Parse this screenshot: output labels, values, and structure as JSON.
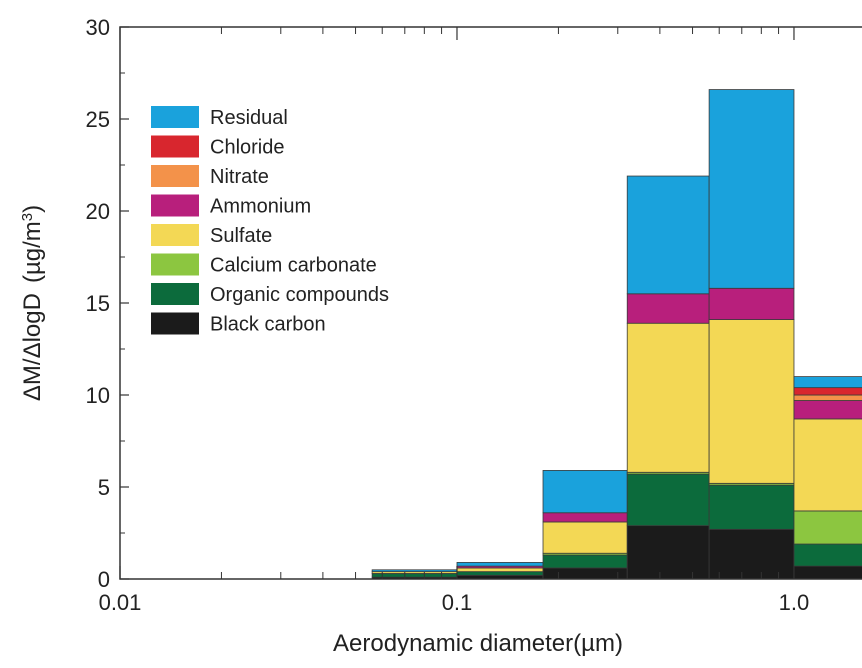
{
  "chart_data": {
    "type": "bar",
    "stacked": true,
    "x_scale": "log",
    "xlabel_main": "Aerodynamic diameter",
    "xlabel_unit": "(µm)",
    "ylabel_main": "ΔM/ΔlogD",
    "ylabel_unit_prefix": "(µg/m",
    "ylabel_unit_sup": "3",
    "ylabel_unit_suffix": ")",
    "xlim": [
      0.01,
      1.8
    ],
    "ylim": [
      0,
      30
    ],
    "x_ticks": [
      {
        "value": 0.01,
        "label": "0.01"
      },
      {
        "value": 0.1,
        "label": "0.1"
      },
      {
        "value": 1.0,
        "label": "1.0"
      }
    ],
    "y_ticks": [
      {
        "value": 0,
        "label": "0"
      },
      {
        "value": 5,
        "label": "5"
      },
      {
        "value": 10,
        "label": "10"
      },
      {
        "value": 15,
        "label": "15"
      },
      {
        "value": 20,
        "label": "20"
      },
      {
        "value": 25,
        "label": "25"
      },
      {
        "value": 30,
        "label": "30"
      }
    ],
    "legend_position": "top-left",
    "series": [
      {
        "name": "Black carbon",
        "color": "#1b1b1b",
        "values": [
          0.1,
          0.2,
          0.6,
          2.9,
          2.7,
          0.7
        ]
      },
      {
        "name": "Organic compounds",
        "color": "#0c6b3c",
        "values": [
          0.2,
          0.2,
          0.7,
          2.8,
          2.4,
          1.2
        ]
      },
      {
        "name": "Calcium carbonate",
        "color": "#8cc640",
        "values": [
          0.0,
          0.0,
          0.1,
          0.1,
          0.1,
          1.8
        ]
      },
      {
        "name": "Sulfate",
        "color": "#f3d855",
        "values": [
          0.1,
          0.2,
          1.7,
          8.1,
          8.9,
          5.0
        ]
      },
      {
        "name": "Ammonium",
        "color": "#b81f7c",
        "values": [
          0.0,
          0.1,
          0.5,
          1.6,
          1.7,
          1.0
        ]
      },
      {
        "name": "Nitrate",
        "color": "#f3924a",
        "values": [
          0.0,
          0.0,
          0.0,
          0.0,
          0.0,
          0.3
        ]
      },
      {
        "name": "Chloride",
        "color": "#d8262e",
        "values": [
          0.0,
          0.0,
          0.0,
          0.0,
          0.0,
          0.4
        ]
      },
      {
        "name": "Residual",
        "color": "#1aa2dc",
        "values": [
          0.1,
          0.2,
          2.3,
          6.4,
          10.8,
          0.6
        ]
      }
    ],
    "bins": [
      {
        "lower": 0.056,
        "upper": 0.1
      },
      {
        "lower": 0.1,
        "upper": 0.18
      },
      {
        "lower": 0.18,
        "upper": 0.32
      },
      {
        "lower": 0.32,
        "upper": 0.56
      },
      {
        "lower": 0.56,
        "upper": 1.0
      },
      {
        "lower": 1.0,
        "upper": 1.8
      }
    ]
  }
}
